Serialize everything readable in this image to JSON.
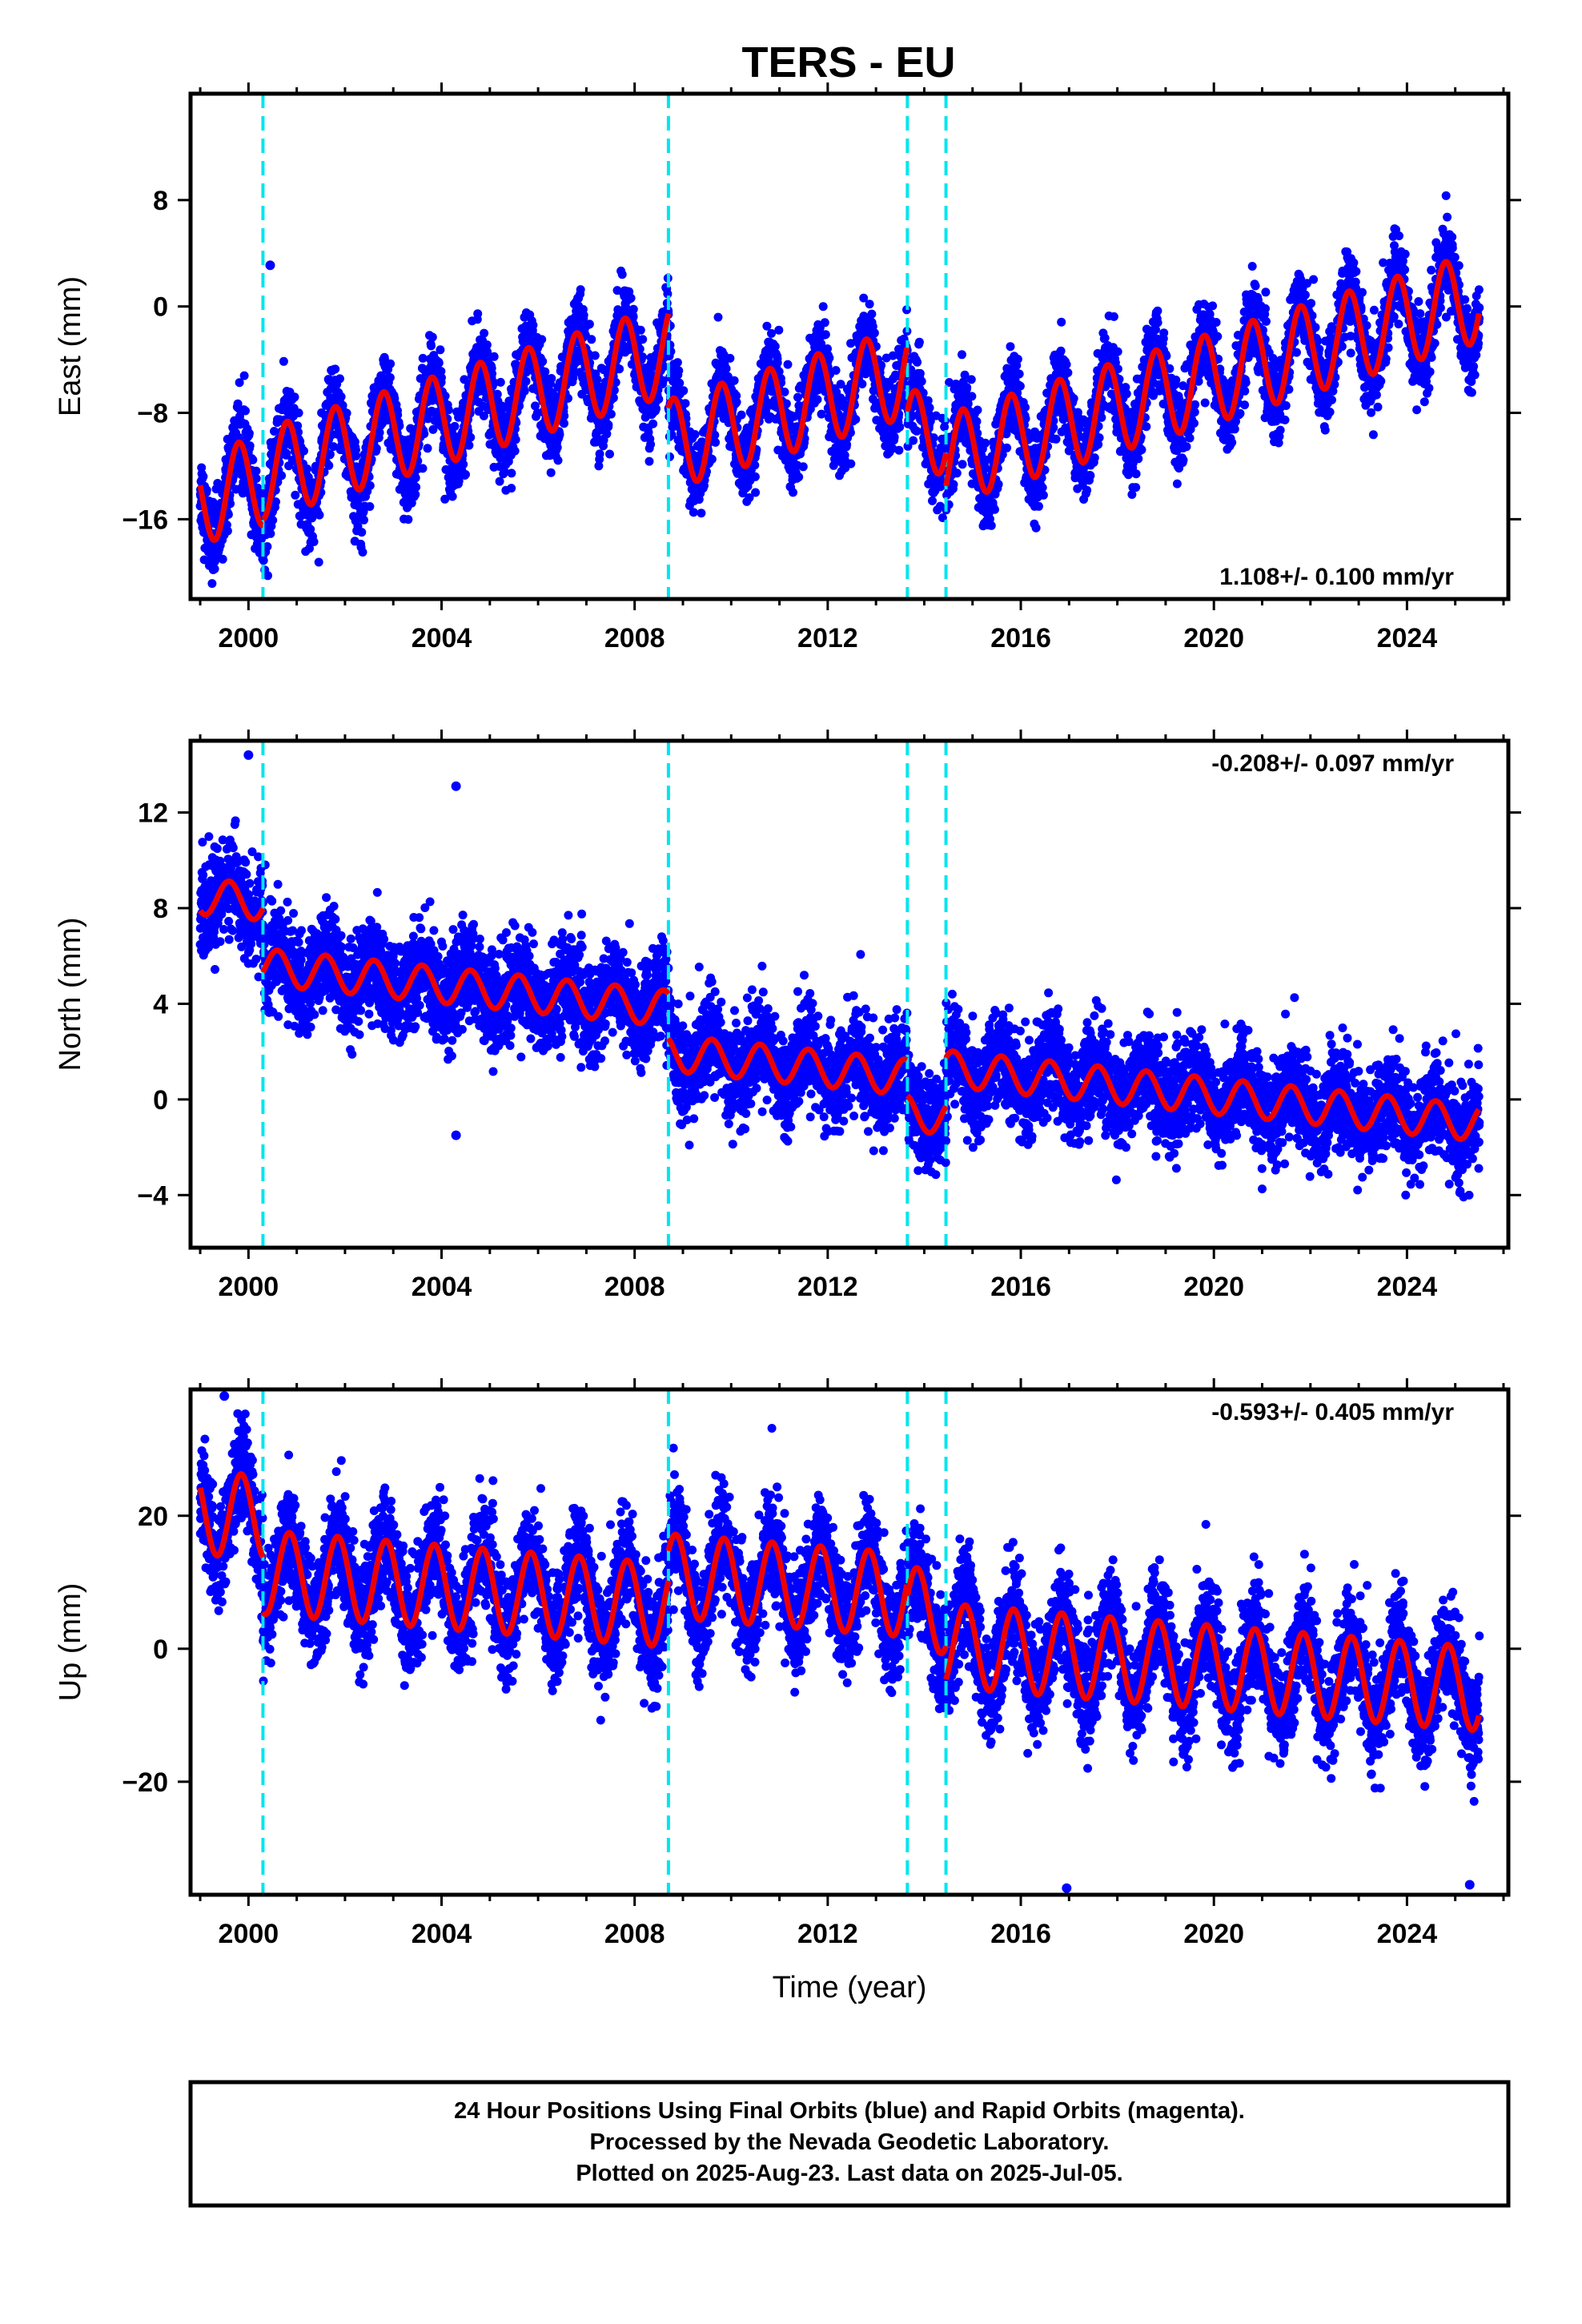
{
  "title": "TERS - EU",
  "footer": {
    "lines": [
      "24 Hour Positions Using Final Orbits (blue) and Rapid Orbits (magenta).",
      "Processed by the Nevada Geodetic Laboratory.",
      "Plotted on 2025-Aug-23. Last data on 2025-Jul-05."
    ]
  },
  "colors": {
    "data": "#0000ff",
    "model": "#ee0000",
    "offset_lines": "#00e5ee",
    "frame": "#000000"
  },
  "chart_data": [
    {
      "type": "scatter",
      "component": "east",
      "ylabel": "East (mm)",
      "xlabel": "",
      "xlim": [
        1998.8,
        2026.1
      ],
      "ylim": [
        -22,
        16
      ],
      "x_ticks": [
        "2000",
        "2004",
        "2008",
        "2012",
        "2016",
        "2020",
        "2024"
      ],
      "y_ticks": [
        "8",
        "0",
        "−8",
        "−16"
      ],
      "y_tick_values": [
        8,
        0,
        -8,
        -16
      ],
      "rate_label": "1.108+/- 0.100 mm/yr",
      "rate_label_position": "bottom-right",
      "offset_epochs": [
        2000.3,
        2008.7,
        2013.65,
        2014.45
      ],
      "model": {
        "segments": [
          [
            1999.0,
            2000.3,
            -14.5
          ],
          [
            2000.3,
            2008.7,
            -12.6
          ],
          [
            2008.7,
            2013.65,
            -10.4
          ],
          [
            2013.65,
            2014.45,
            -9.9
          ],
          [
            2014.45,
            2025.5,
            -11.5
          ]
        ],
        "rate": 1.108,
        "annual_amplitude": 3.4,
        "annual_phase_year": 0.55
      },
      "scatter": {
        "noise": 1.5,
        "outliers": [
          [
            2000.45,
            3.1
          ]
        ]
      }
    },
    {
      "type": "scatter",
      "component": "north",
      "ylabel": "North (mm)",
      "xlabel": "",
      "xlim": [
        1998.8,
        2026.1
      ],
      "ylim": [
        -6.2,
        15
      ],
      "x_ticks": [
        "2000",
        "2004",
        "2008",
        "2012",
        "2016",
        "2020",
        "2024"
      ],
      "y_ticks": [
        "12",
        "8",
        "4",
        "0",
        "−4"
      ],
      "y_tick_values": [
        12,
        8,
        4,
        0,
        -4
      ],
      "rate_label": "-0.208+/- 0.097 mm/yr",
      "rate_label_position": "top-right",
      "offset_epochs": [
        2000.3,
        2008.7,
        2013.65,
        2014.45
      ],
      "model": {
        "segments": [
          [
            1999.0,
            2000.3,
            8.5
          ],
          [
            2000.3,
            2008.7,
            5.55
          ],
          [
            2008.7,
            2013.65,
            1.95
          ],
          [
            2013.65,
            2014.45,
            -0.55
          ],
          [
            2014.45,
            2025.5,
            1.3
          ]
        ],
        "rate": -0.208,
        "annual_amplitude": 0.75,
        "annual_phase_year": 0.35
      },
      "scatter": {
        "noise": 1.0,
        "outliers": [
          [
            2000.0,
            14.4
          ],
          [
            2004.3,
            13.1
          ],
          [
            2004.3,
            -1.5
          ]
        ]
      }
    },
    {
      "type": "scatter",
      "component": "up",
      "ylabel": "Up (mm)",
      "xlabel": "Time (year)",
      "xlim": [
        1998.8,
        2026.1
      ],
      "ylim": [
        -37,
        39
      ],
      "x_ticks": [
        "2000",
        "2004",
        "2008",
        "2012",
        "2016",
        "2020",
        "2024"
      ],
      "y_ticks": [
        "20",
        "0",
        "−20"
      ],
      "y_tick_values": [
        20,
        0,
        -20
      ],
      "rate_label": "-0.593+/- 0.405 mm/yr",
      "rate_label_position": "top-right",
      "offset_epochs": [
        2000.3,
        2008.7,
        2013.65,
        2014.45
      ],
      "model": {
        "segments": [
          [
            1999.0,
            2000.3,
            20.5
          ],
          [
            2000.3,
            2008.7,
            11.5
          ],
          [
            2008.7,
            2013.65,
            11.0
          ],
          [
            2013.65,
            2014.45,
            6.0
          ],
          [
            2014.45,
            2025.5,
            0.5
          ]
        ],
        "rate": -0.593,
        "annual_amplitude": 6.3,
        "annual_phase_year": 0.6
      },
      "scatter": {
        "noise": 4.0,
        "outliers": [
          [
            1999.5,
            38.0
          ],
          [
            2016.95,
            -36.0
          ],
          [
            2025.3,
            -35.5
          ]
        ]
      }
    }
  ]
}
